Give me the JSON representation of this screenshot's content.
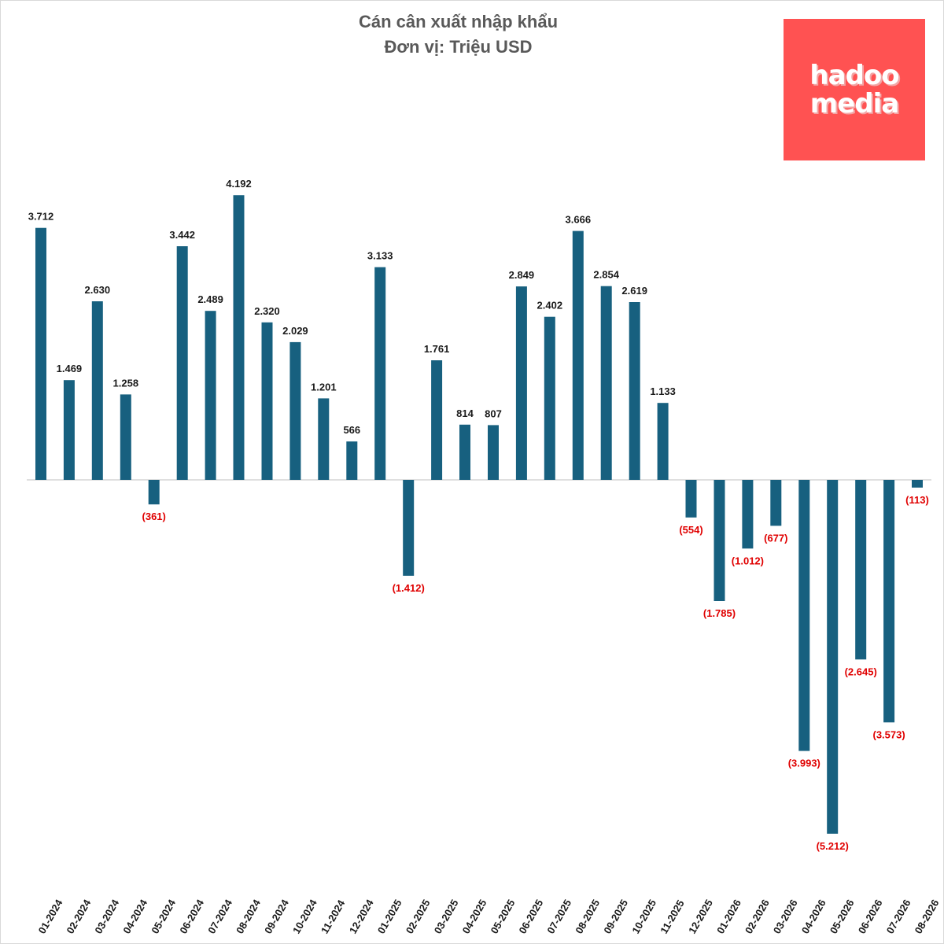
{
  "chart_data": {
    "type": "bar",
    "title": "Cán cân xuất nhập khẩu",
    "subtitle": "Đơn vị: Triệu USD",
    "categories": [
      "01-2024",
      "02-2024",
      "03-2024",
      "04-2024",
      "05-2024",
      "06-2024",
      "07-2024",
      "08-2024",
      "09-2024",
      "10-2024",
      "11-2024",
      "12-2024",
      "01-2025",
      "02-2025",
      "03-2025",
      "04-2025",
      "05-2025",
      "06-2025",
      "07-2025",
      "08-2025",
      "09-2025",
      "10-2025",
      "11-2025",
      "12-2025",
      "01-2026",
      "02-2026",
      "03-2026",
      "04-2026",
      "05-2026",
      "06-2026",
      "07-2026",
      "08-2026"
    ],
    "values": [
      3712,
      1469,
      2630,
      1258,
      -361,
      3442,
      2489,
      4192,
      2320,
      2029,
      1201,
      566,
      3133,
      -1412,
      1761,
      814,
      807,
      2849,
      2402,
      3666,
      2854,
      2619,
      1133,
      -554,
      -1785,
      -1012,
      -677,
      -3993,
      -5212,
      -2645,
      -3573,
      -113
    ],
    "labels": [
      "3.712",
      "1.469",
      "2.630",
      "1.258",
      "(361)",
      "3.442",
      "2.489",
      "4.192",
      "2.320",
      "2.029",
      "1.201",
      "566",
      "3.133",
      "(1.412)",
      "1.761",
      "814",
      "807",
      "2.849",
      "2.402",
      "3.666",
      "2.854",
      "2.619",
      "1.133",
      "(554)",
      "(1.785)",
      "(1.012)",
      "(677)",
      "(3.993)",
      "(5.212)",
      "(2.645)",
      "(3.573)",
      "(113)"
    ],
    "ylim": [
      -5500,
      4500
    ],
    "grid": false,
    "legend": "none",
    "bar_color": "#17607f",
    "positive_label_color": "#1a1a1a",
    "negative_label_color": "#e00000",
    "axis_color": "#bfbfbf"
  },
  "logo": {
    "line1": "hadoo",
    "line2": "media",
    "background": "#ff5252"
  }
}
